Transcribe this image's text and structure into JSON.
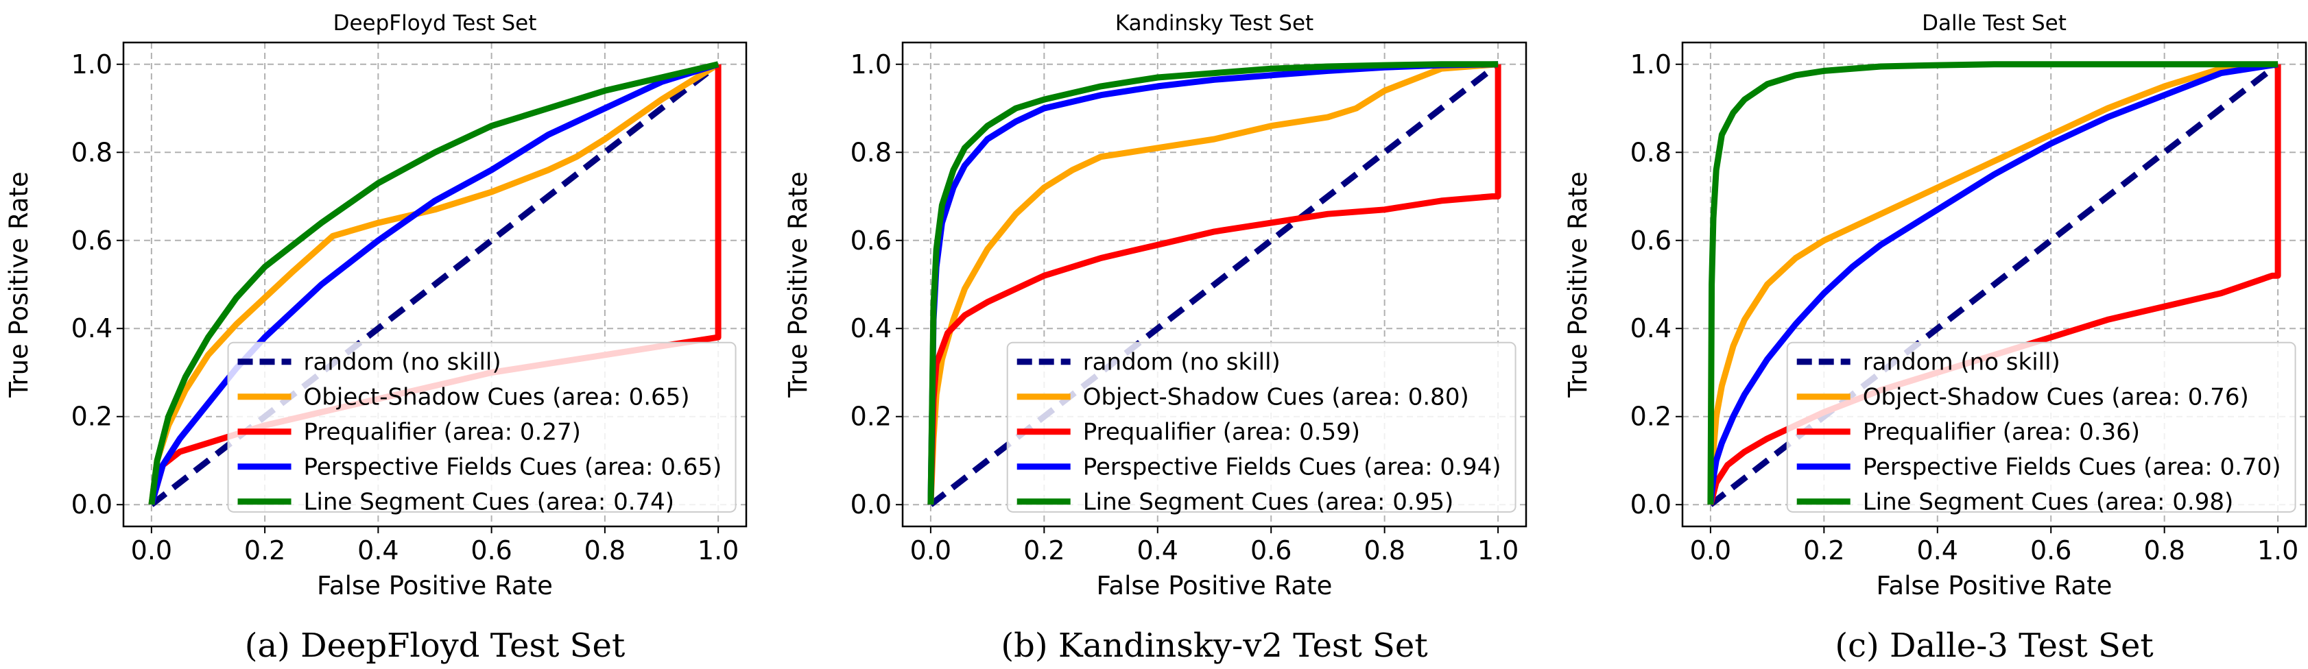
{
  "chart_data": [
    {
      "type": "line",
      "title": "DeepFloyd Test Set",
      "caption": "(a) DeepFloyd Test Set",
      "xlabel": "False Positive Rate",
      "ylabel": "True Positive Rate",
      "xlim": [
        0,
        1
      ],
      "ylim": [
        0,
        1
      ],
      "xticks": [
        "0.0",
        "0.2",
        "0.4",
        "0.6",
        "0.8",
        "1.0"
      ],
      "yticks": [
        "0.0",
        "0.2",
        "0.4",
        "0.6",
        "0.8",
        "1.0"
      ],
      "grid": true,
      "legend_position": "lower-right",
      "series": [
        {
          "name": "random (no skill)",
          "color": "#000080",
          "dash": true,
          "x": [
            0,
            1
          ],
          "y": [
            0,
            1
          ]
        },
        {
          "name": "Object-Shadow Cues (area: 0.65)",
          "color": "#FFA500",
          "x": [
            0,
            0.01,
            0.03,
            0.06,
            0.1,
            0.15,
            0.2,
            0.25,
            0.32,
            0.4,
            0.5,
            0.6,
            0.7,
            0.75,
            0.8,
            0.9,
            1.0
          ],
          "y": [
            0,
            0.1,
            0.18,
            0.26,
            0.34,
            0.41,
            0.47,
            0.53,
            0.61,
            0.64,
            0.67,
            0.71,
            0.76,
            0.79,
            0.83,
            0.92,
            1.0
          ]
        },
        {
          "name": "Prequalifier (area: 0.27)",
          "color": "#FF0000",
          "x": [
            0,
            0.02,
            0.05,
            0.1,
            0.15,
            0.2,
            0.3,
            0.4,
            0.5,
            0.6,
            0.7,
            0.8,
            0.9,
            1.0,
            1.0,
            1.0
          ],
          "y": [
            0,
            0.09,
            0.12,
            0.14,
            0.16,
            0.18,
            0.21,
            0.24,
            0.27,
            0.3,
            0.32,
            0.34,
            0.36,
            0.38,
            0.5,
            1.0
          ]
        },
        {
          "name": "Perspective Fields Cues (area: 0.65)",
          "color": "#0000FF",
          "x": [
            0,
            0.02,
            0.05,
            0.1,
            0.15,
            0.2,
            0.3,
            0.4,
            0.5,
            0.6,
            0.7,
            0.8,
            0.9,
            1.0
          ],
          "y": [
            0,
            0.09,
            0.15,
            0.23,
            0.31,
            0.38,
            0.5,
            0.6,
            0.69,
            0.76,
            0.84,
            0.9,
            0.96,
            1.0
          ]
        },
        {
          "name": "Line Segment Cues (area: 0.74)",
          "color": "#008000",
          "x": [
            0,
            0.01,
            0.03,
            0.06,
            0.1,
            0.15,
            0.2,
            0.3,
            0.4,
            0.5,
            0.6,
            0.7,
            0.8,
            0.9,
            1.0
          ],
          "y": [
            0,
            0.1,
            0.2,
            0.29,
            0.38,
            0.47,
            0.54,
            0.64,
            0.73,
            0.8,
            0.86,
            0.9,
            0.94,
            0.97,
            1.0
          ]
        }
      ]
    },
    {
      "type": "line",
      "title": "Kandinsky Test Set",
      "caption": "(b) Kandinsky-v2 Test Set",
      "xlabel": "False Positive Rate",
      "ylabel": "True Positive Rate",
      "xlim": [
        0,
        1
      ],
      "ylim": [
        0,
        1
      ],
      "xticks": [
        "0.0",
        "0.2",
        "0.4",
        "0.6",
        "0.8",
        "1.0"
      ],
      "yticks": [
        "0.0",
        "0.2",
        "0.4",
        "0.6",
        "0.8",
        "1.0"
      ],
      "grid": true,
      "legend_position": "lower-right",
      "series": [
        {
          "name": "random (no skill)",
          "color": "#000080",
          "dash": true,
          "x": [
            0,
            1
          ],
          "y": [
            0,
            1
          ]
        },
        {
          "name": "Object-Shadow Cues (area: 0.80)",
          "color": "#FFA500",
          "x": [
            0,
            0.005,
            0.01,
            0.02,
            0.04,
            0.06,
            0.1,
            0.15,
            0.2,
            0.25,
            0.3,
            0.4,
            0.5,
            0.6,
            0.7,
            0.75,
            0.8,
            0.9,
            1.0
          ],
          "y": [
            0,
            0.15,
            0.25,
            0.33,
            0.42,
            0.49,
            0.58,
            0.66,
            0.72,
            0.76,
            0.79,
            0.81,
            0.83,
            0.86,
            0.88,
            0.9,
            0.94,
            0.99,
            1.0
          ]
        },
        {
          "name": "Prequalifier (area: 0.59)",
          "color": "#FF0000",
          "x": [
            0,
            0.005,
            0.01,
            0.03,
            0.06,
            0.1,
            0.15,
            0.2,
            0.3,
            0.4,
            0.5,
            0.6,
            0.7,
            0.8,
            0.9,
            0.99,
            1.0,
            1.0
          ],
          "y": [
            0,
            0.24,
            0.32,
            0.39,
            0.43,
            0.46,
            0.49,
            0.52,
            0.56,
            0.59,
            0.62,
            0.64,
            0.66,
            0.67,
            0.69,
            0.7,
            0.7,
            1.0
          ]
        },
        {
          "name": "Perspective Fields Cues (area: 0.94)",
          "color": "#0000FF",
          "x": [
            0,
            0.005,
            0.01,
            0.02,
            0.04,
            0.06,
            0.1,
            0.15,
            0.2,
            0.3,
            0.4,
            0.5,
            0.6,
            0.7,
            0.8,
            0.9,
            1.0
          ],
          "y": [
            0,
            0.42,
            0.54,
            0.64,
            0.72,
            0.77,
            0.83,
            0.87,
            0.9,
            0.93,
            0.95,
            0.965,
            0.975,
            0.985,
            0.993,
            0.998,
            1.0
          ]
        },
        {
          "name": "Line Segment Cues (area: 0.95)",
          "color": "#008000",
          "x": [
            0,
            0.005,
            0.01,
            0.02,
            0.04,
            0.06,
            0.1,
            0.15,
            0.2,
            0.3,
            0.4,
            0.5,
            0.6,
            0.7,
            0.8,
            0.9,
            1.0
          ],
          "y": [
            0,
            0.45,
            0.58,
            0.68,
            0.76,
            0.81,
            0.86,
            0.9,
            0.92,
            0.95,
            0.97,
            0.98,
            0.99,
            0.995,
            0.998,
            1.0,
            1.0
          ]
        }
      ]
    },
    {
      "type": "line",
      "title": "Dalle Test Set",
      "caption": "(c) Dalle-3 Test Set",
      "xlabel": "False Positive Rate",
      "ylabel": "True Positive Rate",
      "xlim": [
        0,
        1
      ],
      "ylim": [
        0,
        1
      ],
      "xticks": [
        "0.0",
        "0.2",
        "0.4",
        "0.6",
        "0.8",
        "1.0"
      ],
      "yticks": [
        "0.0",
        "0.2",
        "0.4",
        "0.6",
        "0.8",
        "1.0"
      ],
      "grid": true,
      "legend_position": "lower-right",
      "series": [
        {
          "name": "random (no skill)",
          "color": "#000080",
          "dash": true,
          "x": [
            0,
            1
          ],
          "y": [
            0,
            1
          ]
        },
        {
          "name": "Object-Shadow Cues (area: 0.76)",
          "color": "#FFA500",
          "x": [
            0,
            0.005,
            0.01,
            0.02,
            0.04,
            0.06,
            0.1,
            0.15,
            0.2,
            0.3,
            0.4,
            0.5,
            0.6,
            0.7,
            0.8,
            0.9,
            1.0
          ],
          "y": [
            0,
            0.12,
            0.2,
            0.27,
            0.36,
            0.42,
            0.5,
            0.56,
            0.6,
            0.66,
            0.72,
            0.78,
            0.84,
            0.9,
            0.95,
            0.99,
            1.0
          ]
        },
        {
          "name": "Prequalifier (area: 0.36)",
          "color": "#FF0000",
          "x": [
            0,
            0.01,
            0.03,
            0.06,
            0.1,
            0.15,
            0.2,
            0.3,
            0.4,
            0.5,
            0.6,
            0.7,
            0.8,
            0.9,
            0.99,
            1.0,
            1.0
          ],
          "y": [
            0,
            0.05,
            0.09,
            0.12,
            0.15,
            0.18,
            0.21,
            0.26,
            0.3,
            0.34,
            0.38,
            0.42,
            0.45,
            0.48,
            0.52,
            0.52,
            1.0
          ]
        },
        {
          "name": "Perspective Fields Cues (area: 0.70)",
          "color": "#0000FF",
          "x": [
            0,
            0.005,
            0.01,
            0.02,
            0.04,
            0.06,
            0.1,
            0.15,
            0.2,
            0.25,
            0.3,
            0.4,
            0.5,
            0.6,
            0.7,
            0.8,
            0.9,
            1.0
          ],
          "y": [
            0,
            0.06,
            0.1,
            0.14,
            0.2,
            0.25,
            0.33,
            0.41,
            0.48,
            0.54,
            0.59,
            0.67,
            0.75,
            0.82,
            0.88,
            0.93,
            0.98,
            1.0
          ]
        },
        {
          "name": "Line Segment Cues (area: 0.98)",
          "color": "#008000",
          "x": [
            0,
            0.002,
            0.005,
            0.01,
            0.02,
            0.04,
            0.06,
            0.1,
            0.15,
            0.2,
            0.3,
            0.4,
            0.5,
            0.7,
            1.0
          ],
          "y": [
            0,
            0.5,
            0.65,
            0.76,
            0.84,
            0.89,
            0.92,
            0.955,
            0.975,
            0.985,
            0.995,
            0.998,
            1.0,
            1.0,
            1.0
          ]
        }
      ]
    }
  ]
}
